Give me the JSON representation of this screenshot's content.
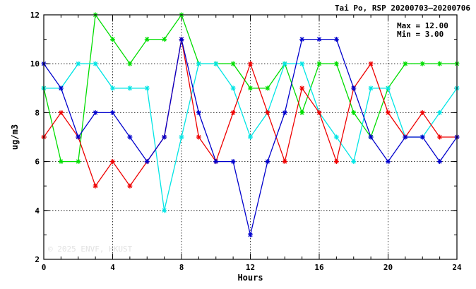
{
  "title": "Tai Po, RSP 20200703–20200706",
  "stats": {
    "max": "Max = 12.00",
    "min": "Min =  3.00"
  },
  "watermark": "© 2025  ENVF, HKUST",
  "chart_data": {
    "type": "line",
    "title": "Tai Po, RSP 20200703–20200706",
    "xlabel": "Hours",
    "ylabel": "ug/m3",
    "xlim": [
      0,
      24
    ],
    "ylim": [
      2,
      12
    ],
    "x_ticks": [
      0,
      4,
      8,
      12,
      16,
      20,
      24
    ],
    "y_ticks": [
      2,
      4,
      6,
      8,
      10,
      12
    ],
    "grid": true,
    "marker": "asterisk",
    "x": [
      0,
      1,
      2,
      3,
      4,
      5,
      6,
      7,
      8,
      9,
      10,
      11,
      12,
      13,
      14,
      15,
      16,
      17,
      18,
      19,
      20,
      21,
      22,
      23,
      24
    ],
    "series": [
      {
        "color": "#00dd00",
        "values": [
          9,
          6,
          6,
          12,
          11,
          10,
          11,
          11,
          12,
          10,
          10,
          10,
          9,
          9,
          10,
          8,
          10,
          10,
          8,
          7,
          9,
          10,
          10,
          10,
          10
        ]
      },
      {
        "color": "#00e5e5",
        "values": [
          9,
          9,
          10,
          10,
          9,
          9,
          9,
          4,
          7,
          10,
          10,
          9,
          7,
          8,
          10,
          10,
          8,
          7,
          6,
          9,
          9,
          7,
          7,
          8,
          9
        ]
      },
      {
        "color": "#ee0000",
        "values": [
          7,
          8,
          7,
          5,
          6,
          5,
          6,
          7,
          11,
          7,
          6,
          8,
          10,
          8,
          6,
          9,
          8,
          6,
          9,
          10,
          8,
          7,
          8,
          7,
          7
        ]
      },
      {
        "color": "#0000cc",
        "values": [
          10,
          9,
          7,
          8,
          8,
          7,
          6,
          7,
          11,
          8,
          6,
          6,
          3,
          6,
          8,
          11,
          11,
          11,
          9,
          7,
          6,
          7,
          7,
          6,
          7
        ]
      }
    ]
  }
}
